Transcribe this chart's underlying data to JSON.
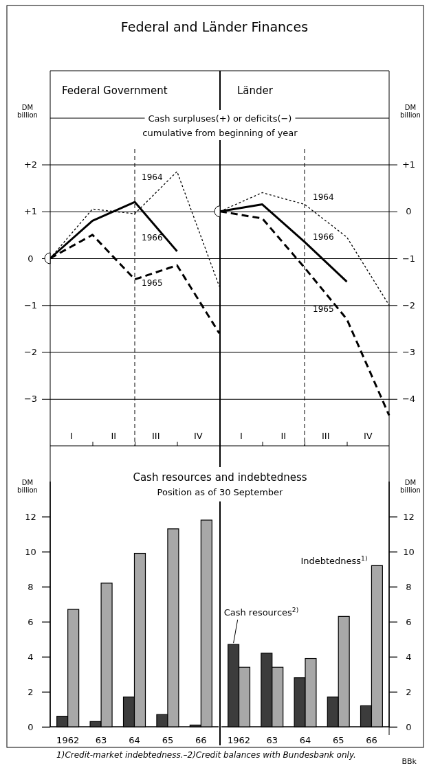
{
  "chart_data": [
    {
      "type": "line",
      "title": "Federal Government",
      "subtitle": "Cash surpluses(+) or deficits(−)\ncumulative from beginning of year",
      "ylabel": "DM billion",
      "categories": [
        null,
        null,
        null,
        null,
        null
      ],
      "ylim": [
        -4,
        4
      ],
      "yticks": [
        {
          "value": 2,
          "label": "+2"
        },
        {
          "value": 1,
          "label": "+1"
        },
        0,
        {
          "value": -1,
          "label": "−1"
        },
        {
          "value": -2,
          "label": "−2"
        },
        {
          "value": -3,
          "label": "−3"
        }
      ],
      "grid": "y",
      "series": [
        {
          "color": "#000000",
          "line_style": "dotted",
          "values": [
            0,
            1.05,
            0.95,
            1.85,
            -0.6
          ]
        },
        {
          "color": "#000000",
          "line_style": "dashed",
          "values": [
            0,
            0.5,
            -0.45,
            -0.15,
            -1.6
          ]
        },
        {
          "color": "#000000",
          "line_style": "solid",
          "values": [
            0,
            0.8,
            1.2,
            0.15,
            null
          ]
        }
      ],
      "annotations": [
        "Federal and Länder Finances",
        "1964",
        "1966",
        "1965",
        "I",
        "II",
        "III",
        "IV"
      ]
    },
    {
      "type": "line",
      "title": "Länder",
      "ylabel": "DM billion",
      "categories": [
        null,
        null,
        null,
        null,
        null
      ],
      "ylim": [
        -5,
        3
      ],
      "yticks": [
        {
          "value": 1,
          "label": "+1"
        },
        0,
        {
          "value": -1,
          "label": "−1"
        },
        {
          "value": -2,
          "label": "−2"
        },
        {
          "value": -3,
          "label": "−3"
        },
        {
          "value": -4,
          "label": "−4"
        }
      ],
      "grid": "y",
      "series": [
        {
          "color": "#000000",
          "line_style": "dotted",
          "values": [
            0,
            0.4,
            0.15,
            -0.55,
            -2.0
          ]
        },
        {
          "color": "#000000",
          "line_style": "dashed",
          "values": [
            0,
            -0.15,
            -1.2,
            -2.3,
            -4.35
          ]
        },
        {
          "color": "#000000",
          "line_style": "solid",
          "values": [
            0,
            0.15,
            -0.65,
            -1.5,
            null
          ]
        }
      ],
      "annotations": [
        "1964",
        "1966",
        "1965",
        "I",
        "II",
        "III",
        "IV"
      ]
    },
    {
      "type": "bar",
      "title": "Cash resources and indebtedness",
      "subtitle": "Position as of 30 September",
      "ylabel": "DM billion",
      "categories": [
        "1962",
        "63",
        "64",
        "65",
        "66"
      ],
      "ylim": [
        0,
        14
      ],
      "yticks": [
        0,
        2,
        4,
        6,
        8,
        10,
        12
      ],
      "series": [
        {
          "color": "#3c3c3c",
          "values": [
            0.6,
            0.3,
            1.7,
            0.7,
            0.1
          ]
        },
        {
          "color": "#a8a8a8",
          "values": [
            6.7,
            8.2,
            9.9,
            11.3,
            11.8
          ]
        }
      ],
      "annotations": [
        "1)Credit-market indebtedness.–2)Credit balances with Bundesbank only."
      ]
    },
    {
      "type": "bar",
      "ylabel": "DM billion",
      "categories": [
        "1962",
        "63",
        "64",
        "65",
        "66"
      ],
      "ylim": [
        0,
        14
      ],
      "yticks": [
        0,
        2,
        4,
        6,
        8,
        10,
        12
      ],
      "series": [
        {
          "name": "Cash resources$^{2)}$",
          "color": "#3c3c3c",
          "values": [
            4.7,
            4.2,
            2.8,
            1.7,
            1.2
          ]
        },
        {
          "name": "Indebtedness$^{1)}$",
          "color": "#a8a8a8",
          "values": [
            3.4,
            3.4,
            3.9,
            6.3,
            9.2
          ]
        }
      ],
      "annotations": [
        "BBk"
      ]
    }
  ]
}
